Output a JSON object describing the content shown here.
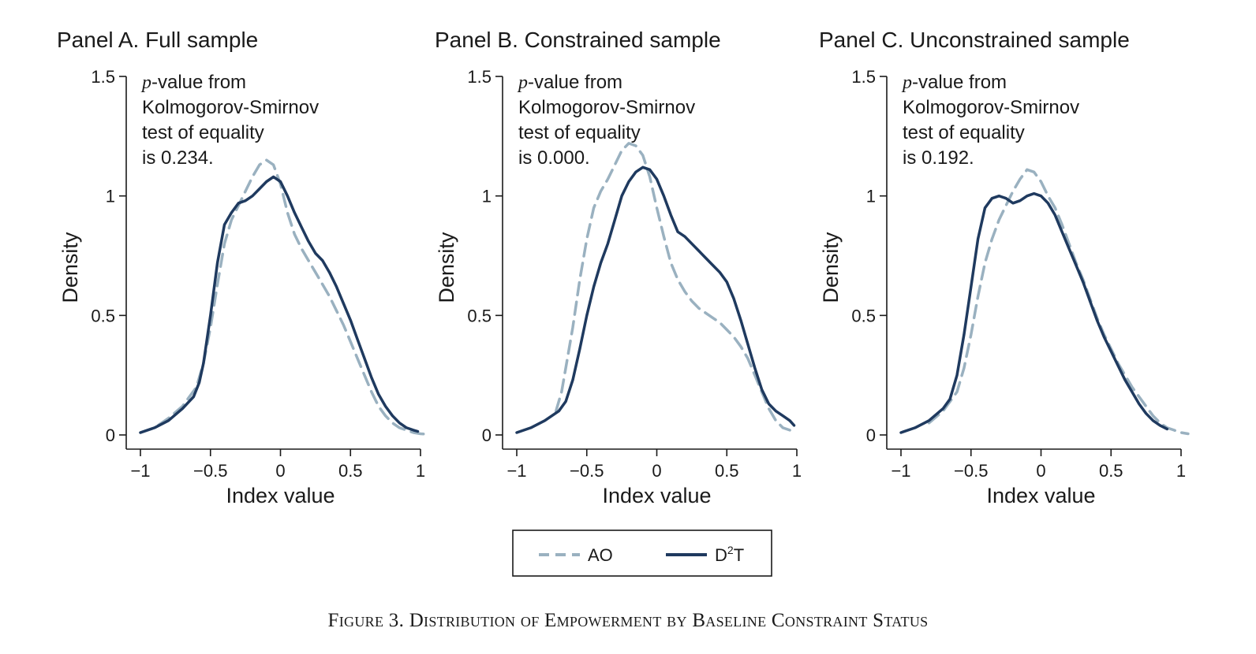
{
  "caption": "Figure 3. Distribution of Empowerment by Baseline Constraint Status",
  "legend": {
    "ao_label": "AO",
    "d2t_label_base": "D",
    "d2t_label_sup": "2",
    "d2t_label_end": "T"
  },
  "colors": {
    "ao": "#9ab1c0",
    "d2t": "#1f3a5f",
    "axis": "#1a1a1a"
  },
  "chart_data": [
    {
      "type": "line",
      "title": "Panel A. Full sample",
      "xlabel": "Index value",
      "ylabel": "Density",
      "xlim": [
        -1,
        1
      ],
      "ylim": [
        0,
        1.5
      ],
      "xticks": [
        -1,
        -0.5,
        0,
        0.5,
        1
      ],
      "xtick_labels": [
        "−1",
        "−0.5",
        "0",
        "0.5",
        "1"
      ],
      "yticks": [
        0,
        0.5,
        1,
        1.5
      ],
      "ytick_labels": [
        "0",
        "0.5",
        "1",
        "1.5"
      ],
      "note_prefix": "p",
      "note_lines": [
        "-value from",
        "Kolmogorov-Smirnov",
        "test of equality",
        "is 0.234."
      ],
      "series": [
        {
          "name": "AO",
          "style": "dashed",
          "x": [
            -1,
            -0.9,
            -0.8,
            -0.7,
            -0.6,
            -0.55,
            -0.5,
            -0.45,
            -0.4,
            -0.35,
            -0.3,
            -0.25,
            -0.2,
            -0.15,
            -0.1,
            -0.05,
            0,
            0.05,
            0.1,
            0.15,
            0.2,
            0.25,
            0.3,
            0.35,
            0.4,
            0.45,
            0.5,
            0.55,
            0.6,
            0.65,
            0.7,
            0.75,
            0.8,
            0.85,
            0.9,
            0.95,
            1.0,
            1.05
          ],
          "y": [
            0.01,
            0.03,
            0.07,
            0.12,
            0.2,
            0.3,
            0.45,
            0.63,
            0.8,
            0.9,
            0.96,
            1.02,
            1.08,
            1.13,
            1.15,
            1.13,
            1.05,
            0.93,
            0.84,
            0.78,
            0.73,
            0.68,
            0.63,
            0.58,
            0.52,
            0.46,
            0.39,
            0.32,
            0.25,
            0.18,
            0.12,
            0.08,
            0.05,
            0.03,
            0.02,
            0.01,
            0.005,
            0.003
          ]
        },
        {
          "name": "D2T",
          "style": "solid",
          "x": [
            -1,
            -0.9,
            -0.8,
            -0.7,
            -0.62,
            -0.58,
            -0.55,
            -0.5,
            -0.45,
            -0.4,
            -0.35,
            -0.3,
            -0.25,
            -0.2,
            -0.15,
            -0.1,
            -0.05,
            0,
            0.05,
            0.1,
            0.15,
            0.2,
            0.25,
            0.3,
            0.35,
            0.4,
            0.45,
            0.5,
            0.55,
            0.6,
            0.65,
            0.7,
            0.75,
            0.8,
            0.85,
            0.9,
            0.95,
            0.98
          ],
          "y": [
            0.01,
            0.03,
            0.06,
            0.11,
            0.16,
            0.22,
            0.3,
            0.5,
            0.72,
            0.88,
            0.93,
            0.97,
            0.98,
            1.0,
            1.03,
            1.06,
            1.08,
            1.06,
            1.0,
            0.93,
            0.87,
            0.81,
            0.76,
            0.73,
            0.68,
            0.62,
            0.55,
            0.48,
            0.4,
            0.32,
            0.24,
            0.17,
            0.12,
            0.08,
            0.05,
            0.03,
            0.02,
            0.015
          ]
        }
      ]
    },
    {
      "type": "line",
      "title": "Panel B. Constrained sample",
      "xlabel": "Index value",
      "ylabel": "Density",
      "xlim": [
        -1,
        1
      ],
      "ylim": [
        0,
        1.5
      ],
      "xticks": [
        -1,
        -0.5,
        0,
        0.5,
        1
      ],
      "xtick_labels": [
        "−1",
        "−0.5",
        "0",
        "0.5",
        "1"
      ],
      "yticks": [
        0,
        0.5,
        1,
        1.5
      ],
      "ytick_labels": [
        "0",
        "0.5",
        "1",
        "1.5"
      ],
      "note_prefix": "p",
      "note_lines": [
        "-value from",
        "Kolmogorov-Smirnov",
        "test of equality",
        "is 0.000."
      ],
      "series": [
        {
          "name": "AO",
          "style": "dashed",
          "x": [
            -0.72,
            -0.68,
            -0.65,
            -0.6,
            -0.55,
            -0.5,
            -0.45,
            -0.4,
            -0.35,
            -0.3,
            -0.25,
            -0.2,
            -0.15,
            -0.1,
            -0.05,
            0,
            0.05,
            0.1,
            0.15,
            0.2,
            0.25,
            0.3,
            0.35,
            0.4,
            0.45,
            0.5,
            0.55,
            0.6,
            0.65,
            0.7,
            0.75,
            0.8,
            0.85,
            0.9,
            0.95
          ],
          "y": [
            0.1,
            0.18,
            0.28,
            0.45,
            0.65,
            0.82,
            0.95,
            1.02,
            1.07,
            1.13,
            1.19,
            1.22,
            1.21,
            1.17,
            1.08,
            0.95,
            0.83,
            0.72,
            0.65,
            0.6,
            0.56,
            0.53,
            0.51,
            0.49,
            0.47,
            0.44,
            0.41,
            0.37,
            0.32,
            0.25,
            0.18,
            0.11,
            0.06,
            0.03,
            0.02
          ]
        },
        {
          "name": "D2T",
          "style": "solid",
          "x": [
            -1,
            -0.9,
            -0.8,
            -0.7,
            -0.65,
            -0.6,
            -0.55,
            -0.5,
            -0.45,
            -0.4,
            -0.35,
            -0.3,
            -0.25,
            -0.2,
            -0.15,
            -0.1,
            -0.05,
            0,
            0.05,
            0.1,
            0.15,
            0.2,
            0.25,
            0.3,
            0.35,
            0.4,
            0.45,
            0.5,
            0.55,
            0.6,
            0.65,
            0.7,
            0.75,
            0.8,
            0.85,
            0.9,
            0.95,
            0.98
          ],
          "y": [
            0.01,
            0.03,
            0.06,
            0.1,
            0.14,
            0.23,
            0.36,
            0.5,
            0.62,
            0.72,
            0.8,
            0.9,
            1.0,
            1.06,
            1.1,
            1.12,
            1.11,
            1.07,
            1.0,
            0.92,
            0.85,
            0.83,
            0.8,
            0.77,
            0.74,
            0.71,
            0.68,
            0.64,
            0.57,
            0.48,
            0.38,
            0.28,
            0.19,
            0.13,
            0.1,
            0.08,
            0.06,
            0.04
          ]
        }
      ]
    },
    {
      "type": "line",
      "title": "Panel C. Unconstrained sample",
      "xlabel": "Index value",
      "ylabel": "Density",
      "xlim": [
        -1,
        1
      ],
      "ylim": [
        0,
        1.5
      ],
      "xticks": [
        -1,
        -0.5,
        0,
        0.5,
        1
      ],
      "xtick_labels": [
        "−1",
        "−0.5",
        "0",
        "0.5",
        "1"
      ],
      "yticks": [
        0,
        0.5,
        1,
        1.5
      ],
      "ytick_labels": [
        "0",
        "0.5",
        "1",
        "1.5"
      ],
      "note_prefix": "p",
      "note_lines": [
        "-value from",
        "Kolmogorov-Smirnov",
        "test of equality",
        "is 0.192."
      ],
      "series": [
        {
          "name": "AO",
          "style": "dashed",
          "x": [
            -0.8,
            -0.7,
            -0.6,
            -0.55,
            -0.5,
            -0.45,
            -0.4,
            -0.35,
            -0.3,
            -0.25,
            -0.2,
            -0.15,
            -0.1,
            -0.05,
            0,
            0.05,
            0.1,
            0.15,
            0.2,
            0.25,
            0.3,
            0.35,
            0.4,
            0.45,
            0.5,
            0.55,
            0.6,
            0.65,
            0.7,
            0.75,
            0.8,
            0.85,
            0.9,
            0.95,
            1.0,
            1.05
          ],
          "y": [
            0.05,
            0.1,
            0.18,
            0.28,
            0.42,
            0.58,
            0.72,
            0.82,
            0.9,
            0.96,
            1.02,
            1.07,
            1.11,
            1.1,
            1.06,
            1.0,
            0.95,
            0.88,
            0.8,
            0.72,
            0.65,
            0.57,
            0.49,
            0.42,
            0.36,
            0.3,
            0.25,
            0.2,
            0.16,
            0.12,
            0.08,
            0.05,
            0.03,
            0.02,
            0.01,
            0.005
          ]
        },
        {
          "name": "D2T",
          "style": "solid",
          "x": [
            -1,
            -0.9,
            -0.8,
            -0.7,
            -0.65,
            -0.6,
            -0.55,
            -0.5,
            -0.45,
            -0.4,
            -0.35,
            -0.3,
            -0.25,
            -0.2,
            -0.15,
            -0.1,
            -0.05,
            0,
            0.05,
            0.1,
            0.15,
            0.2,
            0.25,
            0.3,
            0.35,
            0.4,
            0.45,
            0.5,
            0.55,
            0.6,
            0.65,
            0.7,
            0.75,
            0.8,
            0.85,
            0.9
          ],
          "y": [
            0.01,
            0.03,
            0.06,
            0.11,
            0.15,
            0.25,
            0.42,
            0.62,
            0.82,
            0.95,
            0.99,
            1.0,
            0.99,
            0.97,
            0.98,
            1.0,
            1.01,
            1.0,
            0.97,
            0.92,
            0.85,
            0.78,
            0.71,
            0.64,
            0.56,
            0.48,
            0.41,
            0.35,
            0.29,
            0.23,
            0.18,
            0.13,
            0.09,
            0.06,
            0.04,
            0.025
          ]
        }
      ]
    }
  ]
}
